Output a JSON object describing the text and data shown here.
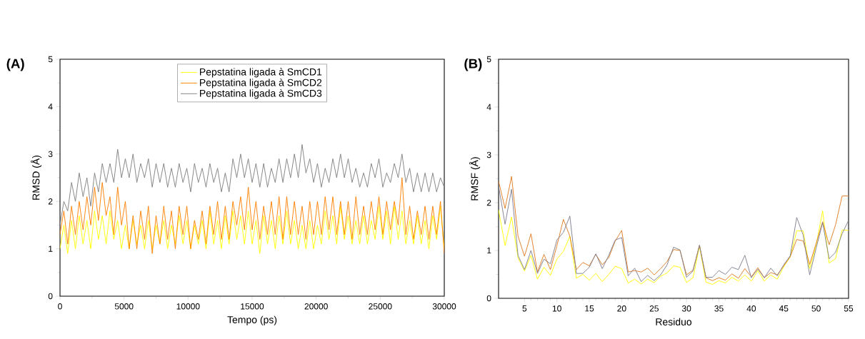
{
  "chart_data": [
    {
      "type": "line",
      "annotations": [
        "(A)"
      ],
      "xlabel": "Tempo (ps)",
      "ylabel": "RMSD (Å)",
      "xlim": [
        0,
        30000
      ],
      "ylim": [
        0,
        5
      ],
      "xticks": [
        0,
        5000,
        10000,
        15000,
        20000,
        25000,
        30000
      ],
      "yticks": [
        0,
        1,
        2,
        3,
        4,
        5
      ],
      "legend": "top",
      "line_style": "solid",
      "series": [
        {
          "name": "Pepstatina ligada à SmCD1",
          "color": "#ffff00",
          "x": [
            0,
            300,
            600,
            900,
            1200,
            1500,
            1800,
            2100,
            2400,
            2700,
            3000,
            3300,
            3600,
            3900,
            4200,
            4500,
            4800,
            5100,
            5400,
            5700,
            6000,
            6300,
            6600,
            6900,
            7200,
            7500,
            7800,
            8100,
            8400,
            8700,
            9000,
            9300,
            9600,
            9900,
            10200,
            10500,
            10800,
            11100,
            11400,
            11700,
            12000,
            12300,
            12600,
            12900,
            13200,
            13500,
            13800,
            14100,
            14400,
            14700,
            15000,
            15300,
            15600,
            15900,
            16200,
            16500,
            16800,
            17100,
            17400,
            17700,
            18000,
            18300,
            18600,
            18900,
            19200,
            19500,
            19800,
            20100,
            20400,
            20700,
            21000,
            21300,
            21600,
            21900,
            22200,
            22500,
            22800,
            23100,
            23400,
            23700,
            24000,
            24300,
            24600,
            24900,
            25200,
            25500,
            25800,
            26100,
            26400,
            26700,
            27000,
            27300,
            27600,
            27900,
            28200,
            28500,
            28800,
            29100,
            29400,
            29700,
            30000
          ],
          "values": [
            1.0,
            1.5,
            0.9,
            1.6,
            1.0,
            1.7,
            1.1,
            1.6,
            1.0,
            1.8,
            1.2,
            1.7,
            1.1,
            1.8,
            1.2,
            1.6,
            1.0,
            1.5,
            1.0,
            1.6,
            1.1,
            1.5,
            1.0,
            1.6,
            1.0,
            1.5,
            1.1,
            1.6,
            1.0,
            1.5,
            1.1,
            1.7,
            1.1,
            1.6,
            1.0,
            1.5,
            1.1,
            1.6,
            1.0,
            1.8,
            1.1,
            1.6,
            1.0,
            1.7,
            1.1,
            1.8,
            1.2,
            1.7,
            1.1,
            1.8,
            1.1,
            1.6,
            0.9,
            1.7,
            1.1,
            1.6,
            1.0,
            1.7,
            1.1,
            1.8,
            1.1,
            1.6,
            1.0,
            1.5,
            1.0,
            1.6,
            1.0,
            1.5,
            1.1,
            1.8,
            1.2,
            1.7,
            1.1,
            1.9,
            1.2,
            1.7,
            1.1,
            1.6,
            1.1,
            1.7,
            1.1,
            1.6,
            1.2,
            1.9,
            1.2,
            1.8,
            1.1,
            1.9,
            1.2,
            1.8,
            1.1,
            1.6,
            1.1,
            1.7,
            1.1,
            1.6,
            1.0,
            1.7,
            1.2,
            1.9,
            1.0
          ]
        },
        {
          "name": "Pepstatina ligada à SmCD2",
          "color": "#ff7f00",
          "x": [
            0,
            300,
            600,
            900,
            1200,
            1500,
            1800,
            2100,
            2400,
            2700,
            3000,
            3300,
            3600,
            3900,
            4200,
            4500,
            4800,
            5100,
            5400,
            5700,
            6000,
            6300,
            6600,
            6900,
            7200,
            7500,
            7800,
            8100,
            8400,
            8700,
            9000,
            9300,
            9600,
            9900,
            10200,
            10500,
            10800,
            11100,
            11400,
            11700,
            12000,
            12300,
            12600,
            12900,
            13200,
            13500,
            13800,
            14100,
            14400,
            14700,
            15000,
            15300,
            15600,
            15900,
            16200,
            16500,
            16800,
            17100,
            17400,
            17700,
            18000,
            18300,
            18600,
            18900,
            19200,
            19500,
            19800,
            20100,
            20400,
            20700,
            21000,
            21300,
            21600,
            21900,
            22200,
            22500,
            22800,
            23100,
            23400,
            23700,
            24000,
            24300,
            24600,
            24900,
            25200,
            25500,
            25800,
            26100,
            26400,
            26700,
            27000,
            27300,
            27600,
            27900,
            28200,
            28500,
            28800,
            29100,
            29400,
            29700,
            30000
          ],
          "values": [
            1.3,
            1.8,
            1.1,
            1.9,
            1.3,
            2.0,
            1.4,
            2.1,
            1.5,
            2.3,
            1.6,
            2.4,
            1.7,
            2.1,
            1.3,
            2.3,
            1.5,
            2.0,
            1.0,
            1.7,
            1.0,
            1.8,
            1.2,
            1.9,
            0.9,
            1.7,
            1.1,
            1.9,
            1.2,
            1.8,
            1.0,
            1.9,
            1.3,
            1.9,
            1.0,
            1.6,
            1.2,
            1.8,
            1.1,
            1.9,
            1.3,
            2.0,
            1.2,
            1.9,
            1.2,
            2.0,
            1.5,
            2.1,
            1.4,
            2.3,
            1.4,
            2.0,
            1.2,
            1.9,
            1.3,
            2.0,
            1.3,
            2.1,
            1.2,
            2.1,
            1.3,
            2.0,
            1.3,
            1.9,
            1.2,
            2.0,
            1.3,
            2.0,
            1.3,
            2.1,
            1.4,
            2.1,
            1.3,
            2.0,
            1.3,
            2.0,
            1.2,
            2.1,
            1.3,
            1.9,
            1.3,
            2.0,
            1.4,
            2.1,
            1.3,
            2.0,
            1.4,
            2.0,
            1.5,
            2.5,
            1.3,
            1.9,
            1.2,
            1.8,
            1.3,
            1.9,
            1.2,
            1.9,
            1.3,
            2.0,
            0.9
          ]
        },
        {
          "name": "Pepstatina ligada à SmCD3",
          "color": "#808080",
          "x": [
            0,
            300,
            600,
            900,
            1200,
            1500,
            1800,
            2100,
            2400,
            2700,
            3000,
            3300,
            3600,
            3900,
            4200,
            4500,
            4800,
            5100,
            5400,
            5700,
            6000,
            6300,
            6600,
            6900,
            7200,
            7500,
            7800,
            8100,
            8400,
            8700,
            9000,
            9300,
            9600,
            9900,
            10200,
            10500,
            10800,
            11100,
            11400,
            11700,
            12000,
            12300,
            12600,
            12900,
            13200,
            13500,
            13800,
            14100,
            14400,
            14700,
            15000,
            15300,
            15600,
            15900,
            16200,
            16500,
            16800,
            17100,
            17400,
            17700,
            18000,
            18300,
            18600,
            18900,
            19200,
            19500,
            19800,
            20100,
            20400,
            20700,
            21000,
            21300,
            21600,
            21900,
            22200,
            22500,
            22800,
            23100,
            23400,
            23700,
            24000,
            24300,
            24600,
            24900,
            25200,
            25500,
            25800,
            26100,
            26400,
            26700,
            27000,
            27300,
            27600,
            27900,
            28200,
            28500,
            28800,
            29100,
            29400,
            29700,
            30000
          ],
          "values": [
            1.5,
            2.0,
            1.8,
            2.4,
            2.0,
            2.6,
            2.1,
            2.5,
            1.9,
            2.6,
            2.2,
            2.8,
            2.4,
            2.8,
            2.4,
            3.1,
            2.5,
            2.9,
            2.5,
            3.0,
            2.4,
            2.8,
            2.5,
            2.9,
            2.3,
            2.8,
            2.4,
            2.8,
            2.3,
            2.7,
            2.3,
            2.8,
            2.4,
            2.7,
            2.2,
            2.8,
            2.4,
            2.7,
            2.3,
            2.8,
            2.4,
            2.7,
            2.2,
            2.6,
            2.2,
            2.9,
            2.5,
            3.0,
            2.5,
            2.9,
            2.4,
            2.8,
            2.3,
            2.8,
            2.3,
            2.7,
            2.4,
            2.9,
            2.4,
            2.9,
            2.5,
            3.0,
            2.5,
            3.2,
            2.6,
            2.9,
            2.4,
            2.8,
            2.3,
            2.7,
            2.4,
            2.9,
            2.5,
            3.0,
            2.5,
            2.9,
            2.4,
            2.7,
            2.3,
            2.6,
            2.3,
            2.8,
            2.5,
            2.9,
            2.3,
            2.6,
            2.4,
            2.8,
            2.5,
            3.0,
            2.4,
            2.7,
            2.2,
            2.6,
            2.2,
            2.6,
            2.2,
            2.6,
            2.2,
            2.5,
            2.3
          ]
        }
      ]
    },
    {
      "type": "line",
      "annotations": [
        "(B)"
      ],
      "xlabel": "Residuo",
      "ylabel": "RMSF (Å)",
      "xlim": [
        1,
        55
      ],
      "ylim": [
        0,
        5
      ],
      "xticks": [
        5,
        10,
        15,
        20,
        25,
        30,
        35,
        40,
        45,
        50,
        55
      ],
      "yticks": [
        0,
        1,
        2,
        3,
        4,
        5
      ],
      "line_style": "solid",
      "x": [
        1,
        2,
        3,
        4,
        5,
        6,
        7,
        8,
        9,
        10,
        11,
        12,
        13,
        14,
        15,
        16,
        17,
        18,
        19,
        20,
        21,
        22,
        23,
        24,
        25,
        26,
        27,
        28,
        29,
        30,
        31,
        32,
        33,
        34,
        35,
        36,
        37,
        38,
        39,
        40,
        41,
        42,
        43,
        44,
        45,
        46,
        47,
        48,
        49,
        50,
        51,
        52,
        53,
        54,
        55
      ],
      "series": [
        {
          "color": "#ffff00",
          "values": [
            1.85,
            1.1,
            1.7,
            0.85,
            0.57,
            0.9,
            0.4,
            0.65,
            0.48,
            0.82,
            0.98,
            1.3,
            0.42,
            0.5,
            0.38,
            0.52,
            0.35,
            0.5,
            0.67,
            0.62,
            0.32,
            0.4,
            0.3,
            0.4,
            0.33,
            0.46,
            0.53,
            0.68,
            0.65,
            0.33,
            0.43,
            1.09,
            0.34,
            0.29,
            0.37,
            0.32,
            0.44,
            0.36,
            0.49,
            0.36,
            0.58,
            0.36,
            0.49,
            0.4,
            0.66,
            0.87,
            1.41,
            1.41,
            0.62,
            1.11,
            1.83,
            0.74,
            0.83,
            1.43,
            1.42
          ]
        },
        {
          "color": "#e07b20",
          "values": [
            2.45,
            1.88,
            2.55,
            1.3,
            0.88,
            1.35,
            0.55,
            0.92,
            0.6,
            1.1,
            1.65,
            1.3,
            0.6,
            0.75,
            0.68,
            0.92,
            0.7,
            0.85,
            1.2,
            1.42,
            0.55,
            0.58,
            0.55,
            0.63,
            0.49,
            0.62,
            0.77,
            1.02,
            1.0,
            0.49,
            0.59,
            1.11,
            0.43,
            0.37,
            0.43,
            0.38,
            0.51,
            0.42,
            0.62,
            0.45,
            0.64,
            0.43,
            0.54,
            0.49,
            0.68,
            0.87,
            1.23,
            1.2,
            0.71,
            1.15,
            1.6,
            1.12,
            1.54,
            2.14,
            2.14
          ]
        },
        {
          "color": "#7f7f8f",
          "values": [
            2.35,
            1.55,
            2.28,
            0.9,
            0.6,
            1.0,
            0.52,
            0.82,
            0.72,
            1.22,
            1.38,
            1.72,
            0.52,
            0.52,
            0.65,
            0.93,
            0.62,
            0.9,
            1.22,
            1.27,
            0.47,
            0.63,
            0.35,
            0.48,
            0.37,
            0.49,
            0.7,
            1.07,
            1.01,
            0.44,
            0.57,
            1.11,
            0.44,
            0.44,
            0.58,
            0.5,
            0.65,
            0.6,
            0.9,
            0.43,
            0.61,
            0.43,
            0.63,
            0.47,
            0.7,
            0.89,
            1.69,
            1.32,
            0.49,
            1.05,
            1.58,
            0.83,
            0.96,
            1.35,
            1.63
          ]
        }
      ]
    }
  ]
}
